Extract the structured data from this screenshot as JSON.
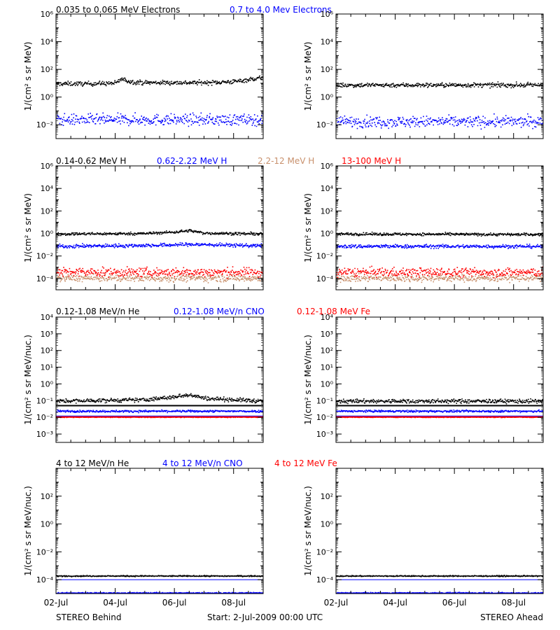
{
  "colors": {
    "black": "#000000",
    "blue": "#0000ff",
    "tan": "#c8906c",
    "red": "#ff0000"
  },
  "footer": {
    "left": "STEREO Behind",
    "center": "Start:  2-Jul-2009 00:00 UTC",
    "right": "STEREO Ahead"
  },
  "xaxis": {
    "range_days": [
      0,
      7
    ],
    "major_ticks": [
      0,
      2,
      4,
      6
    ],
    "tick_labels": [
      "02-Jul",
      "04-Jul",
      "06-Jul",
      "08-Jul"
    ]
  },
  "rows": [
    {
      "name": "electrons",
      "ylabel": "1/(cm² s sr MeV)",
      "ylim_exp": [
        -3,
        6
      ],
      "major_exps": [
        -2,
        0,
        2,
        4,
        6
      ],
      "labeled_exps": [
        -2,
        0,
        2,
        4,
        6
      ],
      "legend": [
        {
          "label": "0.035 to 0.065 MeV Electrons",
          "color": "#000000"
        },
        {
          "label": "0.7 to 4.0 Mev Electrons",
          "color": "#0000ff"
        }
      ]
    },
    {
      "name": "protons",
      "ylabel": "1/(cm² s sr MeV)",
      "ylim_exp": [
        -5,
        6
      ],
      "major_exps": [
        -4,
        -2,
        0,
        2,
        4,
        6
      ],
      "labeled_exps": [
        -4,
        -2,
        0,
        2,
        4,
        6
      ],
      "legend": [
        {
          "label": "0.14-0.62 MeV H",
          "color": "#000000"
        },
        {
          "label": "0.62-2.22 MeV H",
          "color": "#0000ff"
        },
        {
          "label": "2.2-12 MeV H",
          "color": "#c8906c"
        },
        {
          "label": "13-100 MeV H",
          "color": "#ff0000"
        }
      ]
    },
    {
      "name": "heavy-low",
      "ylabel": "1/(cm² s sr MeV/nuc.)",
      "ylim_exp": [
        -3.5,
        4
      ],
      "major_exps": [
        -3,
        -2,
        -1,
        0,
        1,
        2,
        3,
        4
      ],
      "labeled_exps": [
        -3,
        -2,
        -1,
        0,
        1,
        2,
        3,
        4
      ],
      "legend": [
        {
          "label": "0.12-1.08 MeV/n He",
          "color": "#000000"
        },
        {
          "label": "0.12-1.08 MeV/n CNO",
          "color": "#0000ff"
        },
        {
          "label": "0.12-1.08 MeV Fe",
          "color": "#ff0000"
        }
      ]
    },
    {
      "name": "heavy-high",
      "ylabel": "1/(cm² s sr MeV/nuc.)",
      "ylim_exp": [
        -5,
        4
      ],
      "major_exps": [
        -4,
        -2,
        0,
        2
      ],
      "labeled_exps": [
        -4,
        -2,
        0,
        2
      ],
      "legend": [
        {
          "label": "4 to 12 MeV/n He",
          "color": "#000000"
        },
        {
          "label": "4 to 12 MeV/n CNO",
          "color": "#0000ff"
        },
        {
          "label": "4 to 12 MeV Fe",
          "color": "#ff0000"
        }
      ]
    }
  ],
  "chart_data": [
    {
      "type": "scatter",
      "panel": "electrons-behind",
      "yscale": "log",
      "xlim": [
        0,
        7
      ],
      "ylim": [
        0.001,
        1000000
      ],
      "series": [
        {
          "name": "0.035 to 0.065 MeV Electrons",
          "color": "#000000",
          "x": [
            0,
            1,
            2,
            2.2,
            2.5,
            3,
            4,
            5,
            6,
            6.5,
            7
          ],
          "y": [
            10,
            10,
            11,
            22,
            14,
            12,
            12,
            12,
            14,
            20,
            28
          ],
          "spread_dex": 0.08
        },
        {
          "name": "0.7 to 4.0 Mev Electrons",
          "color": "#0000ff",
          "x": [
            0,
            7
          ],
          "y": [
            0.025,
            0.025
          ],
          "spread_dex": 0.2
        }
      ]
    },
    {
      "type": "scatter",
      "panel": "electrons-ahead",
      "yscale": "log",
      "xlim": [
        0,
        7
      ],
      "ylim": [
        0.001,
        1000000
      ],
      "series": [
        {
          "name": "0.035 to 0.065 MeV Electrons",
          "color": "#000000",
          "x": [
            0,
            7
          ],
          "y": [
            8,
            8
          ],
          "spread_dex": 0.08
        },
        {
          "name": "0.7 to 4.0 Mev Electrons",
          "color": "#0000ff",
          "x": [
            0,
            7
          ],
          "y": [
            0.018,
            0.018
          ],
          "spread_dex": 0.2
        }
      ]
    },
    {
      "type": "scatter",
      "panel": "protons-behind",
      "yscale": "log",
      "xlim": [
        0,
        7
      ],
      "ylim": [
        1e-05,
        1000000
      ],
      "series": [
        {
          "name": "0.14-0.62 MeV H",
          "color": "#000000",
          "x": [
            0,
            3,
            4,
            4.5,
            5,
            7
          ],
          "y": [
            1.0,
            1.1,
            1.5,
            2.0,
            1.2,
            1.0
          ],
          "spread_dex": 0.06
        },
        {
          "name": "0.62-2.22 MeV H",
          "color": "#0000ff",
          "x": [
            0,
            3.5,
            4.5,
            7
          ],
          "y": [
            0.08,
            0.1,
            0.12,
            0.09
          ],
          "spread_dex": 0.08
        },
        {
          "name": "2.2-12 MeV H",
          "color": "#c8906c",
          "x": [
            0,
            7
          ],
          "y": [
            0.00012,
            0.00012
          ],
          "spread_dex": 0.15
        },
        {
          "name": "13-100 MeV H",
          "color": "#ff0000",
          "x": [
            0,
            7
          ],
          "y": [
            0.0004,
            0.0004
          ],
          "spread_dex": 0.2
        }
      ]
    },
    {
      "type": "scatter",
      "panel": "protons-ahead",
      "yscale": "log",
      "xlim": [
        0,
        7
      ],
      "ylim": [
        1e-05,
        1000000
      ],
      "series": [
        {
          "name": "0.14-0.62 MeV H",
          "color": "#000000",
          "x": [
            0,
            7
          ],
          "y": [
            1.0,
            0.9
          ],
          "spread_dex": 0.06
        },
        {
          "name": "0.62-2.22 MeV H",
          "color": "#0000ff",
          "x": [
            0,
            7
          ],
          "y": [
            0.08,
            0.08
          ],
          "spread_dex": 0.08
        },
        {
          "name": "2.2-12 MeV H",
          "color": "#c8906c",
          "x": [
            0,
            7
          ],
          "y": [
            0.00012,
            0.00012
          ],
          "spread_dex": 0.15
        },
        {
          "name": "13-100 MeV H",
          "color": "#ff0000",
          "x": [
            0,
            7
          ],
          "y": [
            0.0004,
            0.0004
          ],
          "spread_dex": 0.2
        }
      ]
    },
    {
      "type": "scatter",
      "panel": "heavy-low-behind",
      "yscale": "log",
      "xlim": [
        0,
        7
      ],
      "ylim": [
        0.0003,
        10000
      ],
      "lines": [
        {
          "color": "#000000",
          "y": 0.05
        },
        {
          "color": "#0000ff",
          "y": 0.012
        },
        {
          "color": "#ff0000",
          "y": 0.011
        }
      ],
      "series": [
        {
          "name": "0.12-1.08 MeV/n He",
          "color": "#000000",
          "x": [
            0,
            3,
            4,
            4.5,
            5,
            7
          ],
          "y": [
            0.1,
            0.12,
            0.18,
            0.25,
            0.15,
            0.1
          ],
          "spread_dex": 0.06
        },
        {
          "name": "0.12-1.08 MeV/n CNO",
          "color": "#0000ff",
          "x": [
            0,
            7
          ],
          "y": [
            0.025,
            0.025
          ],
          "spread_dex": 0.03
        },
        {
          "name": "0.12-1.08 MeV Fe",
          "color": "#ff0000",
          "x": [
            0,
            7
          ],
          "y": [
            0.011,
            0.011
          ],
          "spread_dex": 0.01
        }
      ]
    },
    {
      "type": "scatter",
      "panel": "heavy-low-ahead",
      "yscale": "log",
      "xlim": [
        0,
        7
      ],
      "ylim": [
        0.0003,
        10000
      ],
      "lines": [
        {
          "color": "#000000",
          "y": 0.05
        },
        {
          "color": "#0000ff",
          "y": 0.012
        },
        {
          "color": "#ff0000",
          "y": 0.011
        }
      ],
      "series": [
        {
          "name": "0.12-1.08 MeV/n He",
          "color": "#000000",
          "x": [
            0,
            7
          ],
          "y": [
            0.1,
            0.1
          ],
          "spread_dex": 0.06
        },
        {
          "name": "0.12-1.08 MeV/n CNO",
          "color": "#0000ff",
          "x": [
            0,
            7
          ],
          "y": [
            0.025,
            0.025
          ],
          "spread_dex": 0.03
        },
        {
          "name": "0.12-1.08 MeV Fe",
          "color": "#ff0000",
          "x": [
            0,
            7
          ],
          "y": [
            0.011,
            0.011
          ],
          "spread_dex": 0.01
        }
      ]
    },
    {
      "type": "scatter",
      "panel": "heavy-high-behind",
      "yscale": "log",
      "xlim": [
        0,
        7
      ],
      "ylim": [
        1e-05,
        10000
      ],
      "lines": [
        {
          "color": "#0000ff",
          "y": 0.0001
        }
      ],
      "series": [
        {
          "name": "4 to 12 MeV/n He",
          "color": "#000000",
          "x": [
            0,
            7
          ],
          "y": [
            0.0002,
            0.0002
          ],
          "spread_dex": 0.02
        },
        {
          "name": "4 to 12 MeV/n CNO",
          "color": "#0000ff",
          "x": [
            0,
            7
          ],
          "y": [
            1.2e-05,
            1.2e-05
          ],
          "spread_dex": 0.02
        }
      ]
    },
    {
      "type": "scatter",
      "panel": "heavy-high-ahead",
      "yscale": "log",
      "xlim": [
        0,
        7
      ],
      "ylim": [
        1e-05,
        10000
      ],
      "lines": [
        {
          "color": "#0000ff",
          "y": 0.0001
        }
      ],
      "series": [
        {
          "name": "4 to 12 MeV/n He",
          "color": "#000000",
          "x": [
            0,
            7
          ],
          "y": [
            0.0002,
            0.0002
          ],
          "spread_dex": 0.02
        },
        {
          "name": "4 to 12 MeV/n CNO",
          "color": "#0000ff",
          "x": [
            0,
            7
          ],
          "y": [
            1.2e-05,
            1.2e-05
          ],
          "spread_dex": 0.02
        }
      ]
    }
  ]
}
